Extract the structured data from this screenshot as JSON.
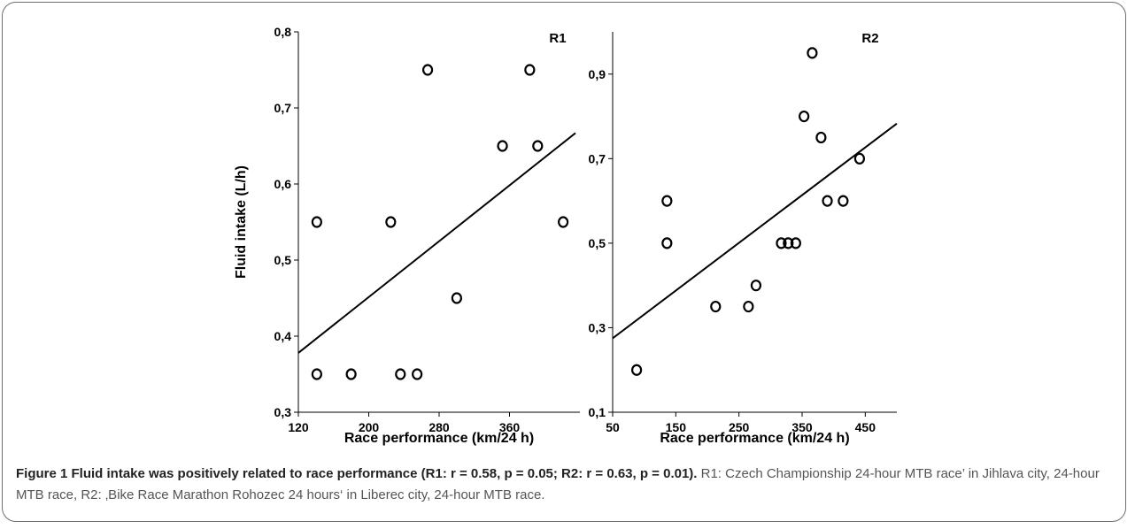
{
  "chart_data": [
    {
      "type": "scatter",
      "id": "r1",
      "panel_label": "R1",
      "xlabel": "Race performance (km/24 h)",
      "ylabel": "Fluid intake (L/h)",
      "xlim": [
        120,
        440
      ],
      "ylim": [
        0.3,
        0.8
      ],
      "xticks": [
        "120",
        "200",
        "280",
        "360"
      ],
      "xtick_values": [
        120,
        200,
        280,
        360
      ],
      "yticks": [
        "0,3",
        "0,4",
        "0,5",
        "0,6",
        "0,7",
        "0,8"
      ],
      "ytick_values": [
        0.3,
        0.4,
        0.5,
        0.6,
        0.7,
        0.8
      ],
      "points": [
        {
          "x": 141,
          "y": 0.55
        },
        {
          "x": 141,
          "y": 0.35
        },
        {
          "x": 180,
          "y": 0.35
        },
        {
          "x": 225,
          "y": 0.55
        },
        {
          "x": 236,
          "y": 0.35
        },
        {
          "x": 255,
          "y": 0.35
        },
        {
          "x": 267,
          "y": 0.75
        },
        {
          "x": 300,
          "y": 0.45
        },
        {
          "x": 352,
          "y": 0.65
        },
        {
          "x": 383,
          "y": 0.75
        },
        {
          "x": 392,
          "y": 0.65
        },
        {
          "x": 421,
          "y": 0.55
        }
      ],
      "fit_line": {
        "x": [
          120,
          435
        ],
        "y": [
          0.378,
          0.667
        ]
      }
    },
    {
      "type": "scatter",
      "id": "r2",
      "panel_label": "R2",
      "xlabel": "Race performance (km/24 h)",
      "ylabel": "",
      "xlim": [
        50,
        500
      ],
      "ylim": [
        0.1,
        1.0
      ],
      "xticks": [
        "50",
        "150",
        "250",
        "350",
        "450"
      ],
      "xtick_values": [
        50,
        150,
        250,
        350,
        450
      ],
      "yticks": [
        "0,1",
        "0,3",
        "0,5",
        "0,7",
        "0,9"
      ],
      "ytick_values": [
        0.1,
        0.3,
        0.5,
        0.7,
        0.9
      ],
      "points": [
        {
          "x": 88,
          "y": 0.2
        },
        {
          "x": 136,
          "y": 0.6
        },
        {
          "x": 136,
          "y": 0.5
        },
        {
          "x": 213,
          "y": 0.35
        },
        {
          "x": 265,
          "y": 0.35
        },
        {
          "x": 277,
          "y": 0.4
        },
        {
          "x": 317,
          "y": 0.5
        },
        {
          "x": 328,
          "y": 0.5
        },
        {
          "x": 340,
          "y": 0.5
        },
        {
          "x": 353,
          "y": 0.8
        },
        {
          "x": 366,
          "y": 0.95
        },
        {
          "x": 380,
          "y": 0.75
        },
        {
          "x": 390,
          "y": 0.6
        },
        {
          "x": 415,
          "y": 0.6
        },
        {
          "x": 441,
          "y": 0.7
        }
      ],
      "fit_line": {
        "x": [
          50,
          500
        ],
        "y": [
          0.275,
          0.783
        ]
      }
    }
  ],
  "caption": {
    "bold": "Figure 1 Fluid intake was positively related to race performance (R1: r = 0.58, p = 0.05; R2: r = 0.63, p = 0.01).",
    "rest": " R1: Czech Championship 24-hour MTB race’ in Jihlava city, 24-hour MTB race, R2: ‚Bike Race Marathon Rohozec 24 hours‘ in Liberec city, 24-hour MTB race."
  }
}
